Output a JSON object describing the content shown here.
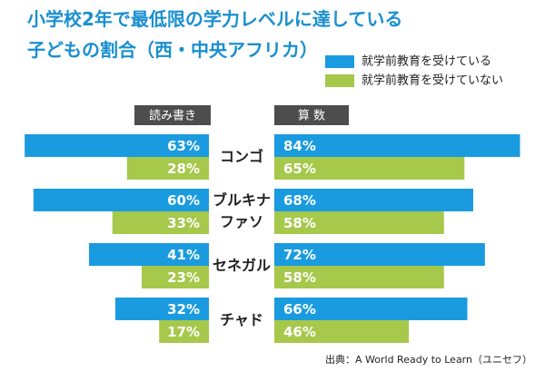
{
  "chart_data": {
    "type": "butterfly",
    "title": "小学校2年で最低限の学力レベルに達している\n子どもの割合（西・中央アフリカ）",
    "panels": [
      "読み書き",
      "算 数"
    ],
    "categories": [
      "コンゴ",
      "ブルキナ\nファソ",
      "セネガル",
      "チャド"
    ],
    "series": [
      {
        "name": "就学前教育を受けている",
        "color": "#1a9be0",
        "values": [
          [
            63,
            60,
            41,
            32
          ],
          [
            84,
            68,
            72,
            66
          ]
        ],
        "value_labels": [
          [
            "63%",
            "60%",
            "41%",
            "32%"
          ],
          [
            "84%",
            "68%",
            "72%",
            "66%"
          ]
        ]
      },
      {
        "name": "就学前教育を受けていない",
        "color": "#a6c84b",
        "values": [
          [
            28,
            33,
            23,
            17
          ],
          [
            65,
            58,
            58,
            46
          ]
        ],
        "value_labels": [
          [
            "28%",
            "33%",
            "23%",
            "17%"
          ],
          [
            "65%",
            "58%",
            "58%",
            "46%"
          ]
        ]
      }
    ],
    "source": "出典：A World Ready to Learn（ユニセフ）"
  }
}
